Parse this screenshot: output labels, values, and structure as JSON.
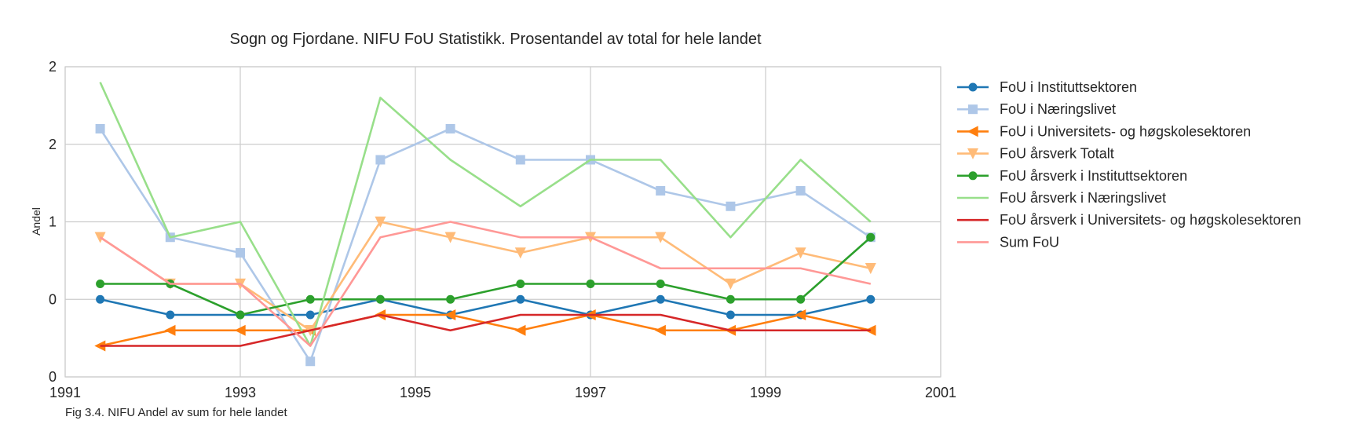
{
  "chart_data": {
    "type": "line",
    "title": "Sogn og Fjordane. NIFU FoU Statistikk. Prosentandel av total for hele landet",
    "xlabel": "",
    "ylabel": "Andel",
    "caption": "Fig 3.4. NIFU Andel av sum for hele landet",
    "x": [
      1991.4,
      1992.2,
      1993.0,
      1993.8,
      1994.6,
      1995.4,
      1996.2,
      1997.0,
      1997.8,
      1998.6,
      1999.4,
      2000.2
    ],
    "xlim": [
      1991,
      2001
    ],
    "ylim": [
      0,
      2
    ],
    "x_ticks": [
      {
        "value": 1991,
        "label": "1991"
      },
      {
        "value": 1993,
        "label": "1993"
      },
      {
        "value": 1995,
        "label": "1995"
      },
      {
        "value": 1997,
        "label": "1997"
      },
      {
        "value": 1999,
        "label": "1999"
      },
      {
        "value": 2001,
        "label": "2001"
      }
    ],
    "y_ticks": [
      {
        "value": 0,
        "label": "0"
      },
      {
        "value": 0.5,
        "label": "0"
      },
      {
        "value": 1.0,
        "label": "1"
      },
      {
        "value": 1.5,
        "label": "2"
      },
      {
        "value": 2.0,
        "label": "2"
      }
    ],
    "grid": true,
    "legend_position": "right",
    "series": [
      {
        "name": "FoU i Instituttsektoren",
        "color": "#1f77b4",
        "marker": "circle",
        "values": [
          0.5,
          0.4,
          0.4,
          0.4,
          0.5,
          0.4,
          0.5,
          0.4,
          0.5,
          0.4,
          0.4,
          0.5
        ]
      },
      {
        "name": "FoU i Næringslivet",
        "color": "#aec7e8",
        "marker": "square",
        "values": [
          1.6,
          0.9,
          0.8,
          0.1,
          1.4,
          1.6,
          1.4,
          1.4,
          1.2,
          1.1,
          1.2,
          0.9
        ]
      },
      {
        "name": "FoU i Universitets- og høgskolesektoren",
        "color": "#ff7f0e",
        "marker": "triangle-left",
        "values": [
          0.2,
          0.3,
          0.3,
          0.3,
          0.4,
          0.4,
          0.3,
          0.4,
          0.3,
          0.3,
          0.4,
          0.3
        ]
      },
      {
        "name": "FoU årsverk Totalt",
        "color": "#ffbb78",
        "marker": "triangle-down",
        "values": [
          0.9,
          0.6,
          0.6,
          0.3,
          1.0,
          0.9,
          0.8,
          0.9,
          0.9,
          0.6,
          0.8,
          0.7
        ]
      },
      {
        "name": "FoU årsverk i Instituttsektoren",
        "color": "#2ca02c",
        "marker": "circle",
        "values": [
          0.6,
          0.6,
          0.4,
          0.5,
          0.5,
          0.5,
          0.6,
          0.6,
          0.6,
          0.5,
          0.5,
          0.9
        ]
      },
      {
        "name": "FoU årsverk i Næringslivet",
        "color": "#98df8a",
        "marker": "none",
        "values": [
          1.9,
          0.9,
          1.0,
          0.2,
          1.8,
          1.4,
          1.1,
          1.4,
          1.4,
          0.9,
          1.4,
          1.0
        ]
      },
      {
        "name": "FoU årsverk i Universitets- og høgskolesektoren",
        "color": "#d62728",
        "marker": "none",
        "values": [
          0.2,
          0.2,
          0.2,
          0.3,
          0.4,
          0.3,
          0.4,
          0.4,
          0.4,
          0.3,
          0.3,
          0.3
        ]
      },
      {
        "name": "Sum FoU",
        "color": "#ff9896",
        "marker": "none",
        "values": [
          0.9,
          0.6,
          0.6,
          0.2,
          0.9,
          1.0,
          0.9,
          0.9,
          0.7,
          0.7,
          0.7,
          0.6
        ]
      }
    ]
  }
}
